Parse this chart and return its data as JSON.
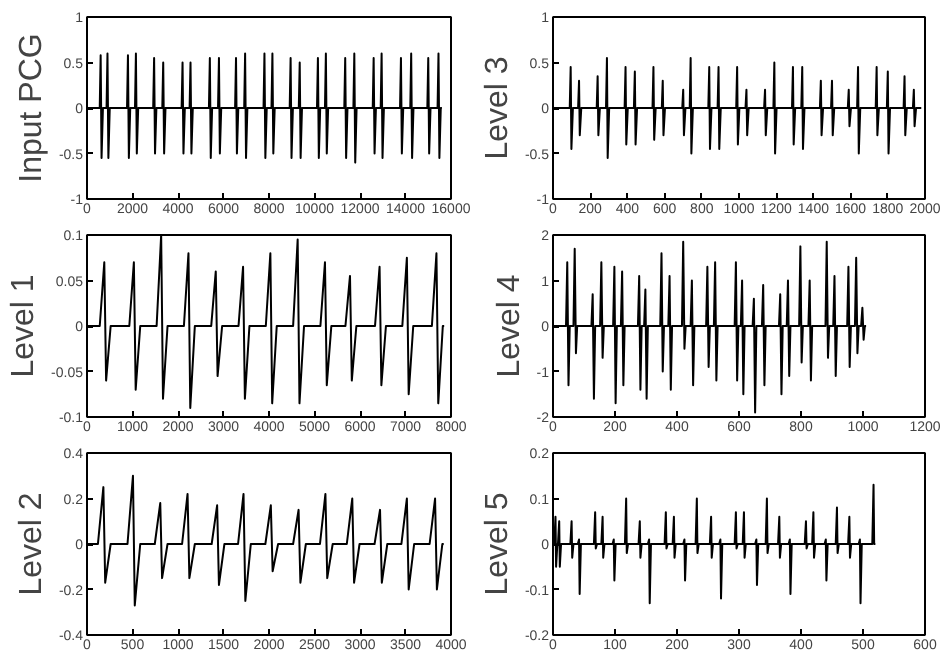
{
  "chart_data": [
    {
      "type": "line",
      "ylabel": "Input PCG",
      "xlim": [
        0,
        16000
      ],
      "ylim": [
        -1,
        1
      ],
      "xticks": [
        0,
        2000,
        4000,
        6000,
        8000,
        10000,
        12000,
        14000,
        16000
      ],
      "yticks": [
        -1,
        -0.5,
        0,
        0.5,
        1
      ],
      "series": [
        {
          "color": "#000000",
          "x": [
            0,
            560,
            600,
            640,
            700,
            860,
            900,
            940,
            1000,
            1760,
            1800,
            1840,
            1900,
            2110,
            2150,
            2190,
            2250,
            2910,
            2950,
            2990,
            3050,
            3310,
            3350,
            3390,
            3450,
            4160,
            4200,
            4240,
            4300,
            4510,
            4550,
            4590,
            4650,
            5360,
            5400,
            5440,
            5500,
            5760,
            5800,
            5840,
            5900,
            6510,
            6550,
            6590,
            6650,
            6910,
            6950,
            6990,
            7050,
            7760,
            7800,
            7840,
            7900,
            8110,
            8150,
            8190,
            8250,
            8910,
            8950,
            8990,
            9050,
            9310,
            9350,
            9390,
            9450,
            10110,
            10150,
            10190,
            10250,
            10460,
            10500,
            10540,
            10600,
            11310,
            11350,
            11390,
            11450,
            11710,
            11750,
            11790,
            11850,
            12560,
            12600,
            12640,
            12700,
            12910,
            12950,
            12990,
            13050,
            13760,
            13800,
            13840,
            13900,
            14210,
            14250,
            14290,
            14350,
            14960,
            15000,
            15040,
            15100,
            15410,
            15450,
            15490,
            15550,
            15600
          ],
          "values": [
            0,
            0,
            0.58,
            -0.55,
            0,
            0,
            0.6,
            -0.55,
            0,
            0,
            0.58,
            -0.55,
            0,
            0,
            0.6,
            -0.5,
            0,
            0,
            0.55,
            -0.5,
            0,
            0,
            0.5,
            -0.5,
            0,
            0,
            0.5,
            -0.5,
            0,
            0,
            0.5,
            -0.5,
            0,
            0,
            0.55,
            -0.55,
            0,
            0,
            0.55,
            -0.5,
            0,
            0,
            0.55,
            -0.5,
            0,
            0,
            0.6,
            -0.55,
            0,
            0,
            0.6,
            -0.55,
            0,
            0,
            0.6,
            -0.5,
            0,
            0,
            0.55,
            -0.55,
            0,
            0,
            0.5,
            -0.55,
            0,
            0,
            0.55,
            -0.55,
            0,
            0,
            0.6,
            -0.5,
            0,
            0,
            0.55,
            -0.55,
            0,
            0,
            0.6,
            -0.6,
            0,
            0,
            0.55,
            -0.5,
            0,
            0,
            0.6,
            -0.55,
            0,
            0,
            0.55,
            -0.5,
            0,
            0,
            0.6,
            -0.55,
            0,
            0,
            0.55,
            -0.5,
            0,
            0,
            0.6,
            -0.55,
            0,
            0
          ]
        }
      ]
    },
    {
      "type": "line",
      "ylabel": "Level 3",
      "xlim": [
        0,
        2000
      ],
      "ylim": [
        -1,
        1
      ],
      "xticks": [
        0,
        200,
        400,
        600,
        800,
        1000,
        1200,
        1400,
        1600,
        1800,
        2000
      ],
      "yticks": [
        -1,
        -0.5,
        0,
        0.5,
        1
      ],
      "series": [
        {
          "color": "#000000",
          "x": [
            0,
            90,
            95,
            99,
            107,
            135,
            140,
            144,
            152,
            235,
            240,
            244,
            252,
            285,
            290,
            294,
            302,
            385,
            390,
            394,
            402,
            435,
            440,
            444,
            452,
            535,
            540,
            544,
            552,
            585,
            590,
            594,
            602,
            695,
            700,
            704,
            712,
            735,
            740,
            744,
            752,
            835,
            840,
            844,
            852,
            885,
            890,
            894,
            902,
            985,
            990,
            994,
            1002,
            1035,
            1040,
            1044,
            1052,
            1135,
            1140,
            1144,
            1152,
            1185,
            1190,
            1194,
            1202,
            1285,
            1290,
            1294,
            1302,
            1335,
            1340,
            1344,
            1352,
            1435,
            1440,
            1444,
            1452,
            1495,
            1500,
            1504,
            1512,
            1585,
            1590,
            1594,
            1602,
            1635,
            1640,
            1644,
            1652,
            1735,
            1740,
            1744,
            1752,
            1795,
            1800,
            1804,
            1812,
            1885,
            1890,
            1894,
            1902,
            1935,
            1940,
            1944,
            1952,
            1980
          ],
          "values": [
            0,
            0,
            0.45,
            -0.45,
            0,
            0,
            0.3,
            -0.3,
            0,
            0,
            0.35,
            -0.3,
            0,
            0,
            0.55,
            -0.55,
            0,
            0,
            0.45,
            -0.4,
            0,
            0,
            0.4,
            -0.4,
            0,
            0,
            0.45,
            -0.35,
            0,
            0,
            0.3,
            -0.3,
            0,
            0,
            0.2,
            -0.3,
            0,
            0,
            0.55,
            -0.5,
            0,
            0,
            0.45,
            -0.45,
            0,
            0,
            0.45,
            -0.45,
            0,
            0,
            0.45,
            -0.4,
            0,
            0,
            0.2,
            -0.3,
            0,
            0,
            0.2,
            -0.3,
            0,
            0,
            0.5,
            -0.5,
            0,
            0,
            0.45,
            -0.4,
            0,
            0,
            0.45,
            -0.45,
            0,
            0,
            0.3,
            -0.3,
            0,
            0,
            0.3,
            -0.3,
            0,
            0,
            0.2,
            -0.2,
            0,
            0,
            0.45,
            -0.5,
            0,
            0,
            0.45,
            -0.3,
            0,
            0,
            0.4,
            -0.5,
            0,
            0,
            0.35,
            -0.3,
            0,
            0,
            0.2,
            -0.2,
            0,
            0
          ]
        }
      ]
    },
    {
      "type": "line",
      "ylabel": "Level 1",
      "xlim": [
        0,
        8000
      ],
      "ylim": [
        -0.1,
        0.1
      ],
      "xticks": [
        0,
        1000,
        2000,
        3000,
        4000,
        5000,
        6000,
        7000,
        8000
      ],
      "yticks": [
        -0.1,
        -0.05,
        0,
        0.05,
        0.1
      ],
      "series": [
        {
          "color": "#000000",
          "x": [
            0,
            280,
            380,
            420,
            520,
            930,
            1030,
            1070,
            1170,
            1530,
            1630,
            1670,
            1770,
            2130,
            2230,
            2270,
            2370,
            2730,
            2830,
            2870,
            2970,
            3330,
            3430,
            3470,
            3570,
            3930,
            4030,
            4070,
            4170,
            4530,
            4630,
            4670,
            4770,
            5130,
            5230,
            5270,
            5370,
            5680,
            5780,
            5820,
            5920,
            6330,
            6430,
            6470,
            6570,
            6930,
            7030,
            7070,
            7170,
            7580,
            7680,
            7720,
            7820,
            7850
          ],
          "values": [
            0,
            0,
            0.07,
            -0.06,
            0,
            0,
            0.07,
            -0.07,
            0,
            0,
            0.1,
            -0.08,
            0,
            0,
            0.08,
            -0.09,
            0,
            0,
            0.06,
            -0.055,
            0,
            0,
            0.065,
            -0.08,
            0,
            0,
            0.08,
            -0.085,
            0,
            0,
            0.095,
            -0.085,
            0,
            0,
            0.07,
            -0.065,
            0,
            0,
            0.055,
            -0.06,
            0,
            0,
            0.065,
            -0.065,
            0,
            0,
            0.075,
            -0.075,
            0,
            0,
            0.08,
            -0.085,
            0,
            0
          ]
        }
      ]
    },
    {
      "type": "line",
      "ylabel": "Level 4",
      "xlim": [
        0,
        1200
      ],
      "ylim": [
        -2,
        2
      ],
      "xticks": [
        0,
        200,
        400,
        600,
        800,
        1000,
        1200
      ],
      "yticks": [
        -2,
        -1,
        0,
        1,
        2
      ],
      "series": [
        {
          "color": "#000000",
          "x": [
            0,
            42,
            46,
            50,
            54,
            66,
            70,
            74,
            78,
            124,
            128,
            132,
            136,
            152,
            156,
            160,
            164,
            194,
            198,
            202,
            206,
            219,
            223,
            227,
            231,
            274,
            278,
            282,
            286,
            294,
            298,
            302,
            306,
            346,
            350,
            354,
            358,
            372,
            376,
            380,
            384,
            416,
            420,
            424,
            428,
            444,
            448,
            452,
            456,
            494,
            498,
            502,
            506,
            519,
            523,
            527,
            531,
            586,
            590,
            594,
            598,
            606,
            610,
            614,
            618,
            644,
            648,
            652,
            656,
            674,
            678,
            682,
            686,
            729,
            733,
            737,
            741,
            754,
            758,
            762,
            766,
            794,
            798,
            802,
            806,
            824,
            828,
            832,
            836,
            879,
            883,
            887,
            891,
            904,
            908,
            912,
            916,
            949,
            953,
            957,
            961,
            974,
            978,
            982,
            986,
            994,
            998,
            1002,
            1006,
            1010
          ],
          "values": [
            0,
            0,
            1.4,
            -1.3,
            0,
            0,
            1.7,
            -0.6,
            0,
            0,
            0.7,
            -1.6,
            0,
            0,
            1.4,
            -0.7,
            0,
            0,
            1.3,
            -1.7,
            0,
            0,
            1.2,
            -1.3,
            0,
            0,
            1.1,
            -1.4,
            0,
            0,
            0.8,
            -1.6,
            0,
            0,
            1.6,
            -1.0,
            0,
            0,
            1.1,
            -1.4,
            0,
            0,
            1.85,
            -0.5,
            0,
            0,
            1.0,
            -1.3,
            0,
            0,
            1.3,
            -0.9,
            0,
            0,
            1.4,
            -1.2,
            0,
            0,
            1.4,
            -1.2,
            0,
            0,
            1.0,
            -1.5,
            0,
            0,
            0.6,
            -1.9,
            0,
            0,
            0.9,
            -1.3,
            0,
            0,
            0.7,
            -1.5,
            0,
            0,
            1.0,
            -1.1,
            0,
            0,
            1.75,
            -0.8,
            0,
            0,
            1.0,
            -1.2,
            0,
            0,
            1.85,
            -0.7,
            0,
            0,
            1.1,
            -1.1,
            0,
            0,
            1.3,
            -0.9,
            0,
            0,
            1.5,
            -0.6,
            0,
            0,
            0.4,
            -0.3,
            0,
            0
          ]
        }
      ]
    },
    {
      "type": "line",
      "ylabel": "Level 2",
      "xlim": [
        0,
        4000
      ],
      "ylim": [
        -0.4,
        0.4
      ],
      "xticks": [
        0,
        500,
        1000,
        1500,
        2000,
        2500,
        3000,
        3500,
        4000
      ],
      "yticks": [
        -0.4,
        -0.2,
        0,
        0.2,
        0.4
      ],
      "series": [
        {
          "color": "#000000",
          "x": [
            0,
            120,
            180,
            200,
            260,
            445,
            505,
            525,
            585,
            745,
            805,
            825,
            885,
            1045,
            1105,
            1125,
            1185,
            1370,
            1430,
            1450,
            1510,
            1660,
            1720,
            1740,
            1800,
            1960,
            2020,
            2040,
            2100,
            2265,
            2325,
            2345,
            2405,
            2560,
            2620,
            2640,
            2700,
            2855,
            2915,
            2935,
            2995,
            3160,
            3220,
            3240,
            3300,
            3455,
            3515,
            3535,
            3595,
            3765,
            3825,
            3845,
            3905,
            3920
          ],
          "values": [
            0,
            0,
            0.25,
            -0.17,
            0,
            0,
            0.3,
            -0.27,
            0,
            0,
            0.18,
            -0.15,
            0,
            0,
            0.22,
            -0.15,
            0,
            0,
            0.17,
            -0.18,
            0,
            0,
            0.22,
            -0.25,
            0,
            0,
            0.17,
            -0.12,
            0,
            0,
            0.15,
            -0.17,
            0,
            0,
            0.22,
            -0.15,
            0,
            0,
            0.2,
            -0.17,
            0,
            0,
            0.15,
            -0.17,
            0,
            0,
            0.2,
            -0.2,
            0,
            0,
            0.2,
            -0.2,
            0,
            0
          ]
        }
      ]
    },
    {
      "type": "line",
      "ylabel": "Level 5",
      "xlim": [
        0,
        600
      ],
      "ylim": [
        -0.2,
        0.2
      ],
      "xticks": [
        0,
        100,
        200,
        300,
        400,
        500,
        600
      ],
      "yticks": [
        -0.2,
        -0.1,
        0,
        0.1,
        0.2
      ],
      "series": [
        {
          "color": "#000000",
          "x": [
            0,
            2,
            4,
            5,
            7,
            8,
            10,
            11,
            13,
            28,
            30,
            31,
            33,
            40,
            42,
            43,
            45,
            66,
            68,
            69,
            71,
            78,
            80,
            81,
            83,
            96,
            98,
            99,
            101,
            116,
            118,
            119,
            121,
            138,
            140,
            141,
            143,
            153,
            155,
            156,
            158,
            180,
            182,
            183,
            185,
            193,
            195,
            196,
            198,
            210,
            212,
            213,
            215,
            230,
            232,
            233,
            235,
            253,
            255,
            256,
            258,
            268,
            270,
            271,
            273,
            293,
            295,
            296,
            298,
            306,
            308,
            309,
            311,
            326,
            328,
            329,
            331,
            343,
            345,
            346,
            348,
            363,
            365,
            366,
            368,
            380,
            382,
            383,
            385,
            406,
            408,
            409,
            411,
            418,
            420,
            421,
            423,
            438,
            440,
            441,
            443,
            456,
            458,
            459,
            461,
            476,
            478,
            479,
            481,
            493,
            495,
            496,
            498,
            515,
            517,
            518,
            520
          ],
          "values": [
            0,
            0,
            0.06,
            -0.05,
            0,
            0,
            0.05,
            -0.05,
            0,
            0,
            0.05,
            -0.03,
            0,
            0,
            0.01,
            -0.11,
            0,
            0,
            0.07,
            -0.01,
            0,
            0,
            0.06,
            -0.03,
            0,
            0,
            0.01,
            -0.08,
            0,
            0,
            0.1,
            -0.02,
            0,
            0,
            0.05,
            -0.03,
            0,
            0,
            0.01,
            -0.13,
            0,
            0,
            0.07,
            -0.01,
            0,
            0,
            0.06,
            -0.03,
            0,
            0,
            0.01,
            -0.08,
            0,
            0,
            0.1,
            -0.02,
            0,
            0,
            0.06,
            -0.03,
            0,
            0,
            0.01,
            -0.12,
            0,
            0,
            0.07,
            -0.01,
            0,
            0,
            0.07,
            -0.03,
            0,
            0,
            0.01,
            -0.09,
            0,
            0,
            0.1,
            -0.02,
            0,
            0,
            0.06,
            -0.03,
            0,
            0,
            0.01,
            -0.11,
            0,
            0,
            0.05,
            -0.01,
            0,
            0,
            0.07,
            -0.03,
            0,
            0,
            0.01,
            -0.08,
            0,
            0,
            0.08,
            -0.02,
            0,
            0,
            0.06,
            -0.03,
            0,
            0,
            0.01,
            -0.13,
            0,
            0,
            0.13,
            0,
            0
          ]
        }
      ]
    }
  ]
}
